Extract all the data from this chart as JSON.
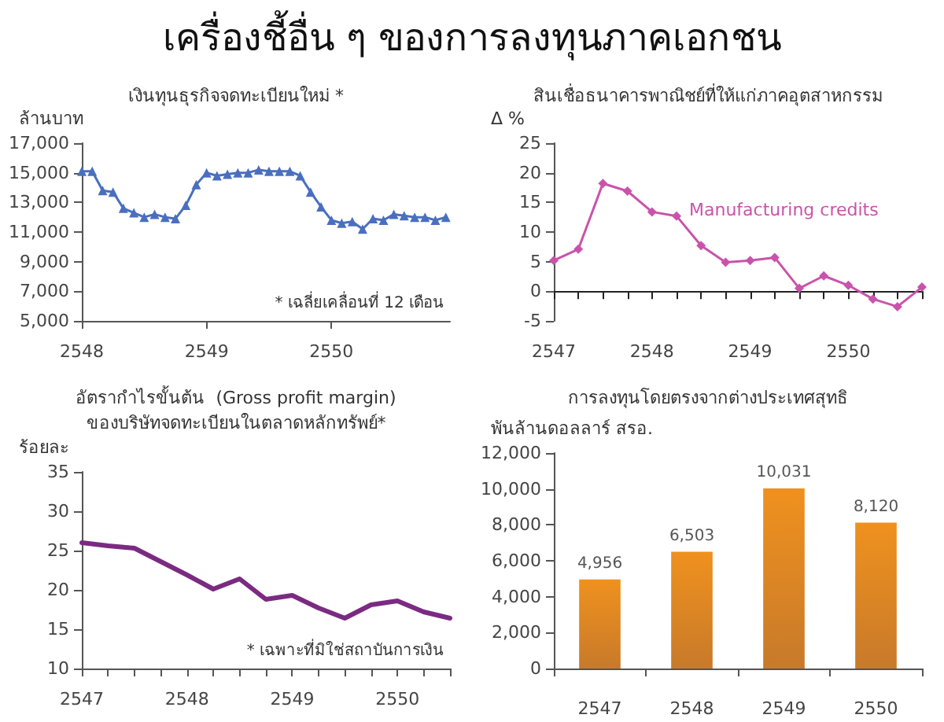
{
  "chart_data": [
    {
      "type": "other",
      "title": "เครื่องชี้อื่น ๆ ของการลงทุนภาคเอกชน"
    },
    {
      "type": "line",
      "title": "เงินทุนธุรกิจจดทะเบียนใหม่ *",
      "ylabel": "ล้านบาท",
      "annotations": [
        "* เฉลี่ยเคลื่อนที่ 12 เดือน"
      ],
      "marker": "triangle",
      "x": [
        2548,
        2548.083,
        2548.167,
        2548.25,
        2548.333,
        2548.417,
        2548.5,
        2548.583,
        2548.667,
        2548.75,
        2548.833,
        2548.917,
        2549,
        2549.083,
        2549.167,
        2549.25,
        2549.333,
        2549.417,
        2549.5,
        2549.583,
        2549.667,
        2549.75,
        2549.833,
        2549.917,
        2550,
        2550.083,
        2550.167,
        2550.25,
        2550.333,
        2550.417,
        2550.5,
        2550.583,
        2550.667,
        2550.75,
        2550.833,
        2550.917
      ],
      "series": [
        {
          "color": "#4a6fbf",
          "values": [
            15100,
            15100,
            13800,
            13700,
            12600,
            12300,
            12000,
            12200,
            12000,
            11900,
            12800,
            14200,
            15000,
            14800,
            14900,
            15000,
            15000,
            15200,
            15100,
            15100,
            15100,
            14800,
            13700,
            12700,
            11800,
            11600,
            11700,
            11200,
            11900,
            11800,
            12200,
            12100,
            12000,
            12000,
            11800,
            12000
          ]
        }
      ],
      "xlim": [
        2548,
        2550.95
      ],
      "xticks": [
        2548,
        2549,
        2550
      ],
      "ylim": [
        5000,
        17000
      ],
      "yticks": [
        {
          "value": 5000,
          "label": "5,000"
        },
        {
          "value": 7000,
          "label": "7,000"
        },
        {
          "value": 9000,
          "label": "9,000"
        },
        {
          "value": 11000,
          "label": "11,000"
        },
        {
          "value": 13000,
          "label": "13,000"
        },
        {
          "value": 15000,
          "label": "15,000"
        },
        {
          "value": 17000,
          "label": "17,000"
        }
      ]
    },
    {
      "type": "line",
      "title": "สินเชื่อธนาคารพาณิชย์ที่ให้แก่ภาคอุตสาหกรรม",
      "ylabel": "Δ %",
      "marker": "diamond",
      "x": [
        2547,
        2547.25,
        2547.5,
        2547.75,
        2548,
        2548.25,
        2548.5,
        2548.75,
        2549,
        2549.25,
        2549.5,
        2549.75,
        2550,
        2550.25,
        2550.5,
        2550.75
      ],
      "series": [
        {
          "name": "Manufacturing credits",
          "color": "#c953ab",
          "values": [
            5.2,
            7.1,
            18.2,
            16.9,
            13.4,
            12.7,
            7.7,
            4.9,
            5.2,
            5.7,
            0.5,
            2.6,
            1.0,
            -1.3,
            -2.6,
            0.7
          ]
        }
      ],
      "xlim": [
        2547,
        2550.75
      ],
      "xticks": [
        2547,
        {
          "value": 2547.25,
          "label": null
        },
        {
          "value": 2547.5,
          "label": null
        },
        {
          "value": 2547.75,
          "label": null
        },
        2548,
        {
          "value": 2548.25,
          "label": null
        },
        {
          "value": 2548.5,
          "label": null
        },
        {
          "value": 2548.75,
          "label": null
        },
        2549,
        {
          "value": 2549.25,
          "label": null
        },
        {
          "value": 2549.5,
          "label": null
        },
        {
          "value": 2549.75,
          "label": null
        },
        2550,
        {
          "value": 2550.25,
          "label": null
        },
        {
          "value": 2550.5,
          "label": null
        },
        {
          "value": 2550.75,
          "label": null
        }
      ],
      "ylim": [
        -5,
        25
      ],
      "yticks": [
        -5,
        0,
        5,
        10,
        15,
        20,
        25
      ]
    },
    {
      "type": "line",
      "title": "อัตรากำไรขั้นต้น  (Gross profit margin)\nของบริษัทจดทะเบียนในตลาดหลักทรัพย์*",
      "ylabel": "ร้อยละ",
      "annotations": [
        "* เฉพาะที่มิใช่สถาบันการเงิน"
      ],
      "x": [
        2547,
        2547.25,
        2547.5,
        2547.75,
        2548,
        2548.25,
        2548.5,
        2548.75,
        2549,
        2549.25,
        2549.5,
        2549.75,
        2550,
        2550.25,
        2550.5
      ],
      "series": [
        {
          "color": "#7b2a82",
          "values": [
            26.0,
            25.6,
            25.3,
            23.6,
            21.9,
            20.1,
            21.4,
            18.8,
            19.3,
            17.7,
            16.4,
            18.1,
            18.6,
            17.2,
            16.4
          ]
        }
      ],
      "xlim": [
        2547,
        2550.5
      ],
      "xticks": [
        2547,
        {
          "value": 2547.25,
          "label": null
        },
        {
          "value": 2547.5,
          "label": null
        },
        {
          "value": 2547.75,
          "label": null
        },
        2548,
        {
          "value": 2548.25,
          "label": null
        },
        {
          "value": 2548.5,
          "label": null
        },
        {
          "value": 2548.75,
          "label": null
        },
        2549,
        {
          "value": 2549.25,
          "label": null
        },
        {
          "value": 2549.5,
          "label": null
        },
        {
          "value": 2549.75,
          "label": null
        },
        2550,
        {
          "value": 2550.25,
          "label": null
        },
        {
          "value": 2550.5,
          "label": null
        }
      ],
      "ylim": [
        10,
        35
      ],
      "yticks": [
        10,
        15,
        20,
        25,
        30,
        35
      ]
    },
    {
      "type": "bar",
      "title": "การลงทุนโดยตรงจากต่างประเทศสุทธิ",
      "ylabel": "พันล้านดอลลาร์ สรอ.",
      "value_labels": [
        "4,956",
        "6,503",
        "10,031",
        "8,120"
      ],
      "categories": [
        "2547",
        "2548",
        "2549",
        "2550"
      ],
      "values": [
        4956,
        6503,
        10031,
        8120
      ],
      "color": "#ef911e",
      "ylim": [
        0,
        12000
      ],
      "yticks": [
        {
          "value": 0,
          "label": "0"
        },
        {
          "value": 2000,
          "label": "2,000"
        },
        {
          "value": 4000,
          "label": "4,000"
        },
        {
          "value": 6000,
          "label": "6,000"
        },
        {
          "value": 8000,
          "label": "8,000"
        },
        {
          "value": 10000,
          "label": "10,000"
        },
        {
          "value": 12000,
          "label": "12,000"
        }
      ]
    }
  ]
}
